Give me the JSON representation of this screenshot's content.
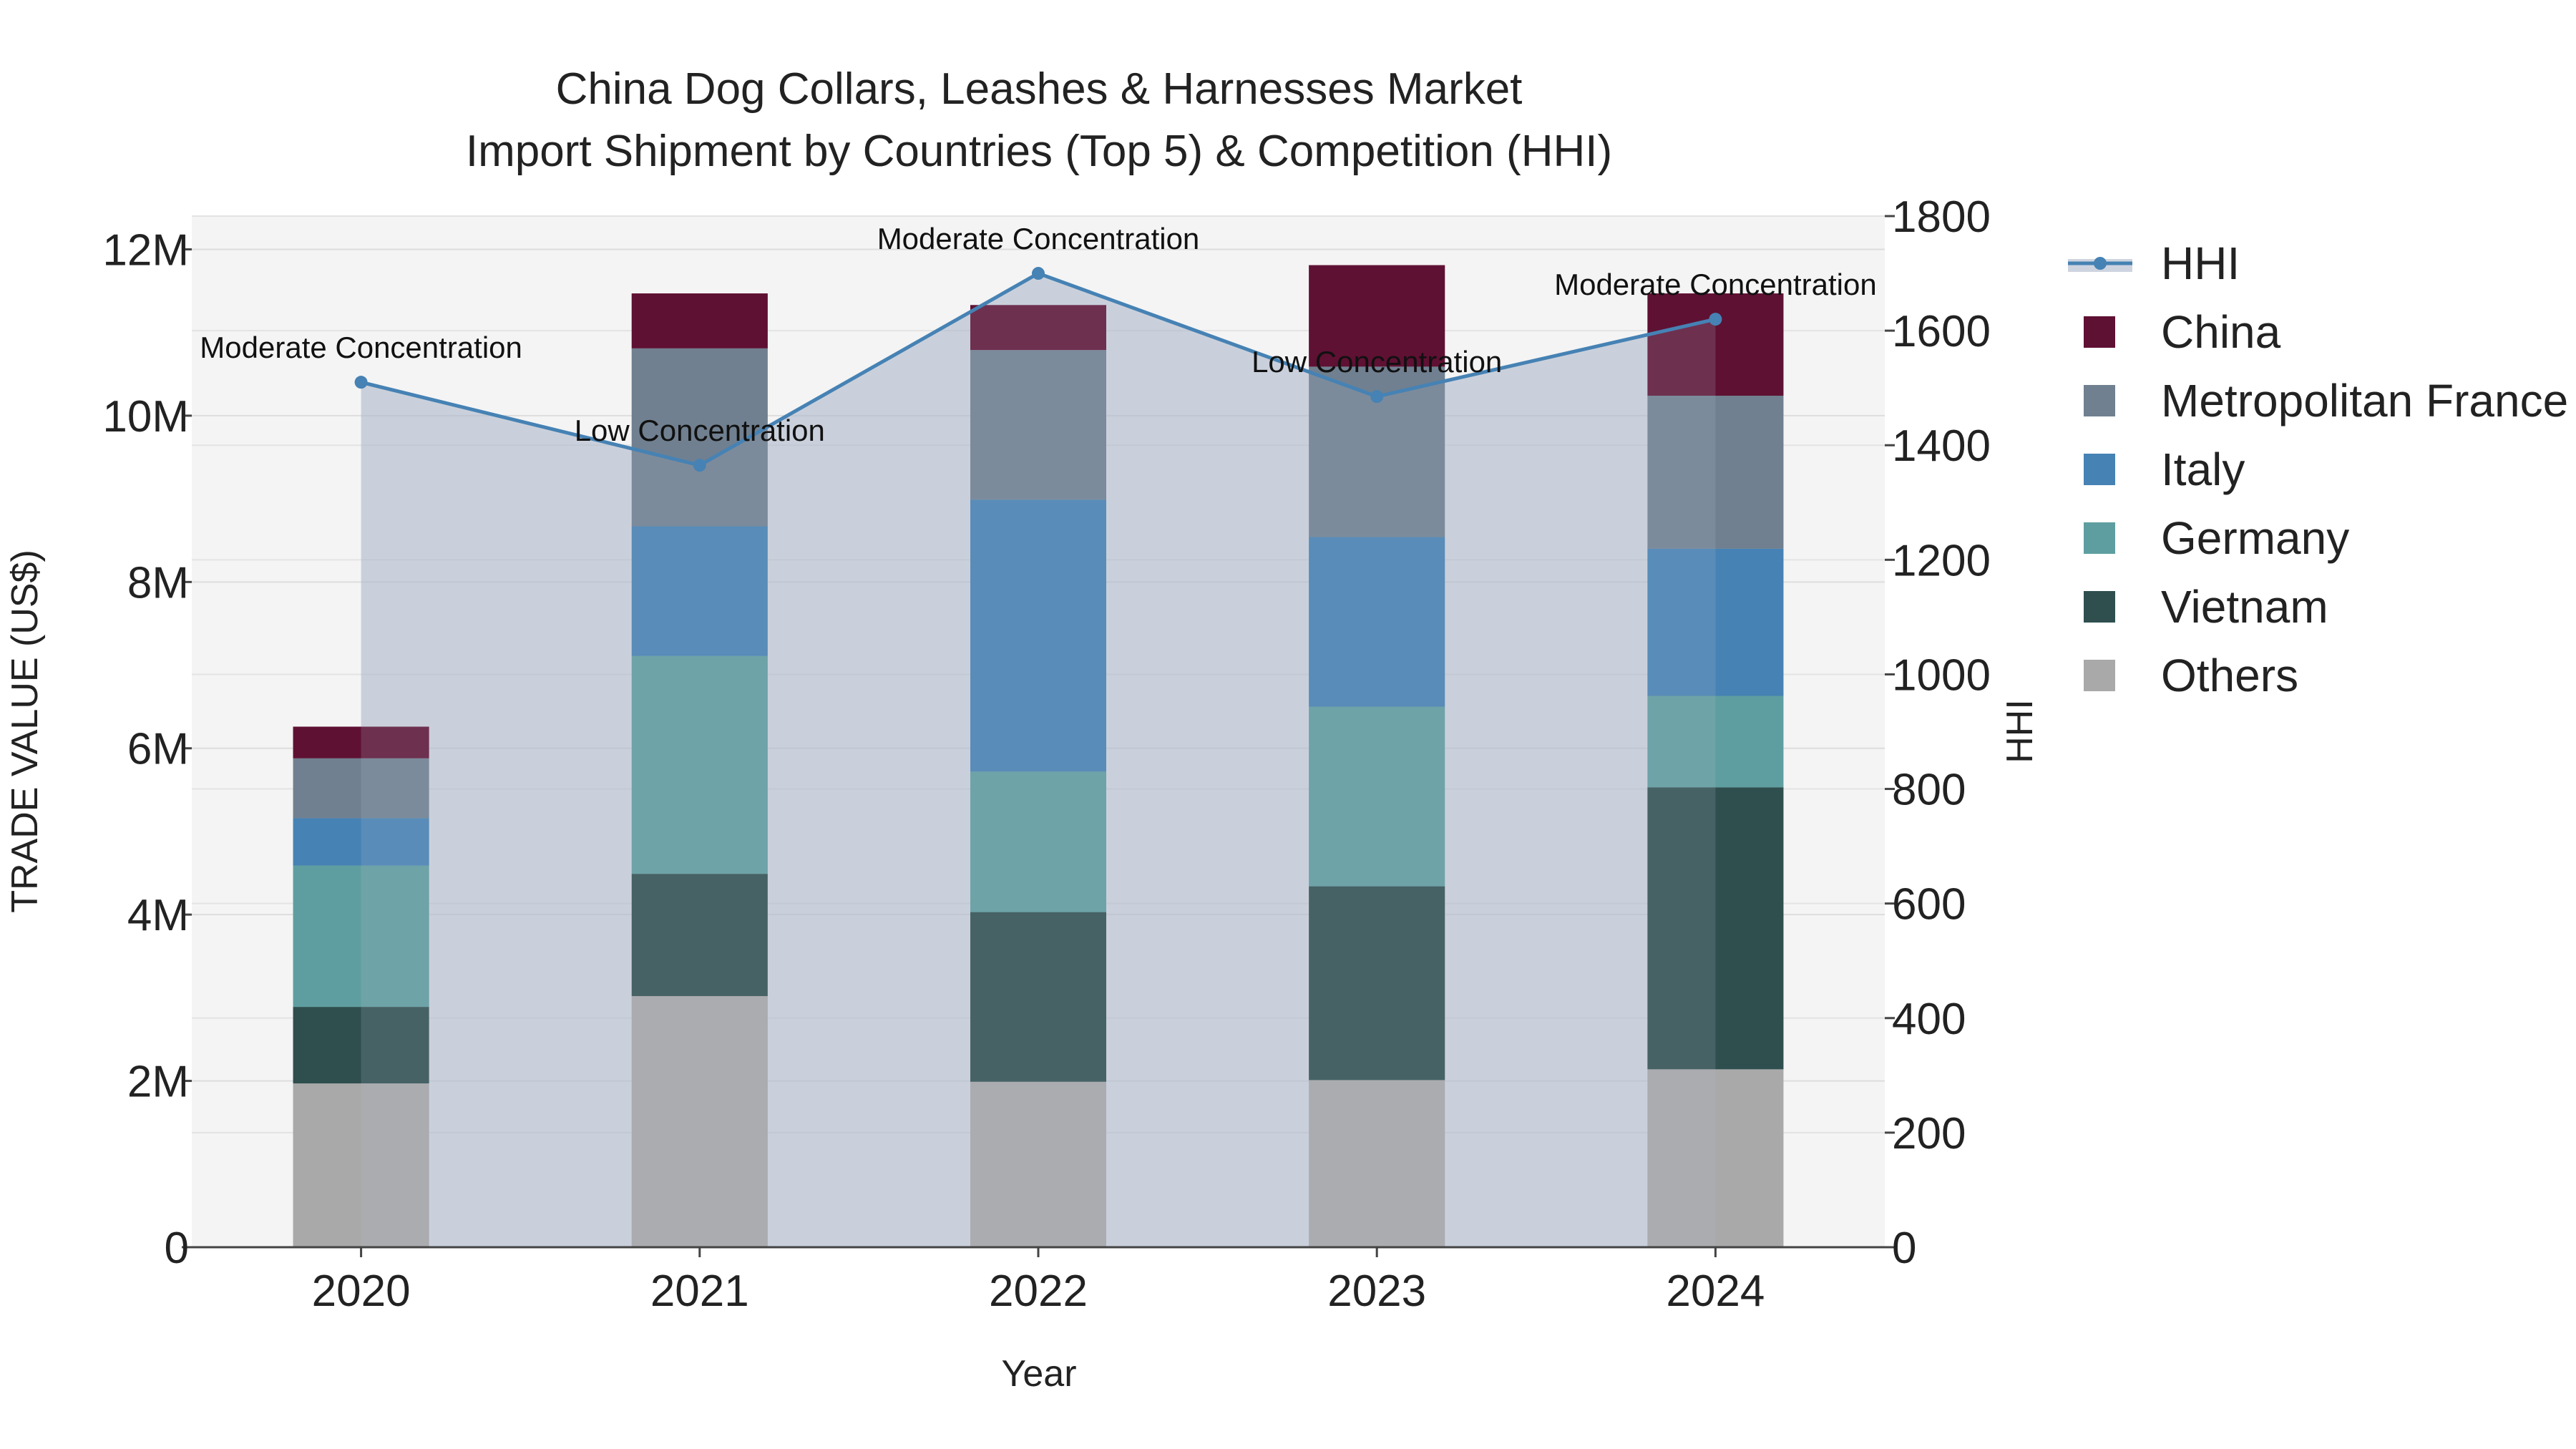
{
  "chart_data": {
    "type": "bar",
    "title_line1": "China Dog Collars, Leashes & Harnesses Market",
    "title_line2": "Import Shipment by Countries (Top 5) & Competition (HHI)",
    "xlabel": "Year",
    "ylabel": "TRADE VALUE (US$)",
    "y2label": "HHI",
    "categories": [
      "2020",
      "2021",
      "2022",
      "2023",
      "2024"
    ],
    "ylim": [
      0,
      12400000
    ],
    "y_ticks": [
      0,
      2000000,
      4000000,
      6000000,
      8000000,
      10000000,
      12000000
    ],
    "y_tick_labels": [
      "0",
      "2M",
      "4M",
      "6M",
      "8M",
      "10M",
      "12M"
    ],
    "y2lim": [
      0,
      1800
    ],
    "y2_ticks": [
      0,
      200,
      400,
      600,
      800,
      1000,
      1200,
      1400,
      1600,
      1800
    ],
    "y2_tick_labels": [
      "0",
      "200",
      "400",
      "600",
      "800",
      "1000",
      "1200",
      "1400",
      "1600",
      "1800"
    ],
    "series": [
      {
        "name": "Others",
        "color": "#a9a9a9",
        "values": [
          1970000,
          3020000,
          1990000,
          2010000,
          2140000
        ]
      },
      {
        "name": "Vietnam",
        "color": "#2f4f4f",
        "values": [
          920000,
          1470000,
          2040000,
          2330000,
          3390000
        ]
      },
      {
        "name": "Germany",
        "color": "#5f9ea0",
        "values": [
          1700000,
          2620000,
          1690000,
          2160000,
          1100000
        ]
      },
      {
        "name": "Italy",
        "color": "#4682b4",
        "values": [
          570000,
          1560000,
          3270000,
          2040000,
          1770000
        ]
      },
      {
        "name": "Metropolitan France",
        "color": "#708090",
        "values": [
          720000,
          2140000,
          1800000,
          2050000,
          1840000
        ]
      },
      {
        "name": "China",
        "color": "#5f1133",
        "values": [
          380000,
          660000,
          540000,
          1220000,
          1230000
        ]
      }
    ],
    "hhi": {
      "name": "HHI",
      "color": "#4682b4",
      "values": [
        1510,
        1365,
        1700,
        1485,
        1620
      ],
      "annotations": [
        "Moderate Concentration",
        "Low Concentration",
        "Moderate Concentration",
        "Low Concentration",
        "Moderate Concentration"
      ]
    },
    "legend_order": [
      "HHI",
      "China",
      "Metropolitan France",
      "Italy",
      "Germany",
      "Vietnam",
      "Others"
    ],
    "legend_position": "right"
  }
}
